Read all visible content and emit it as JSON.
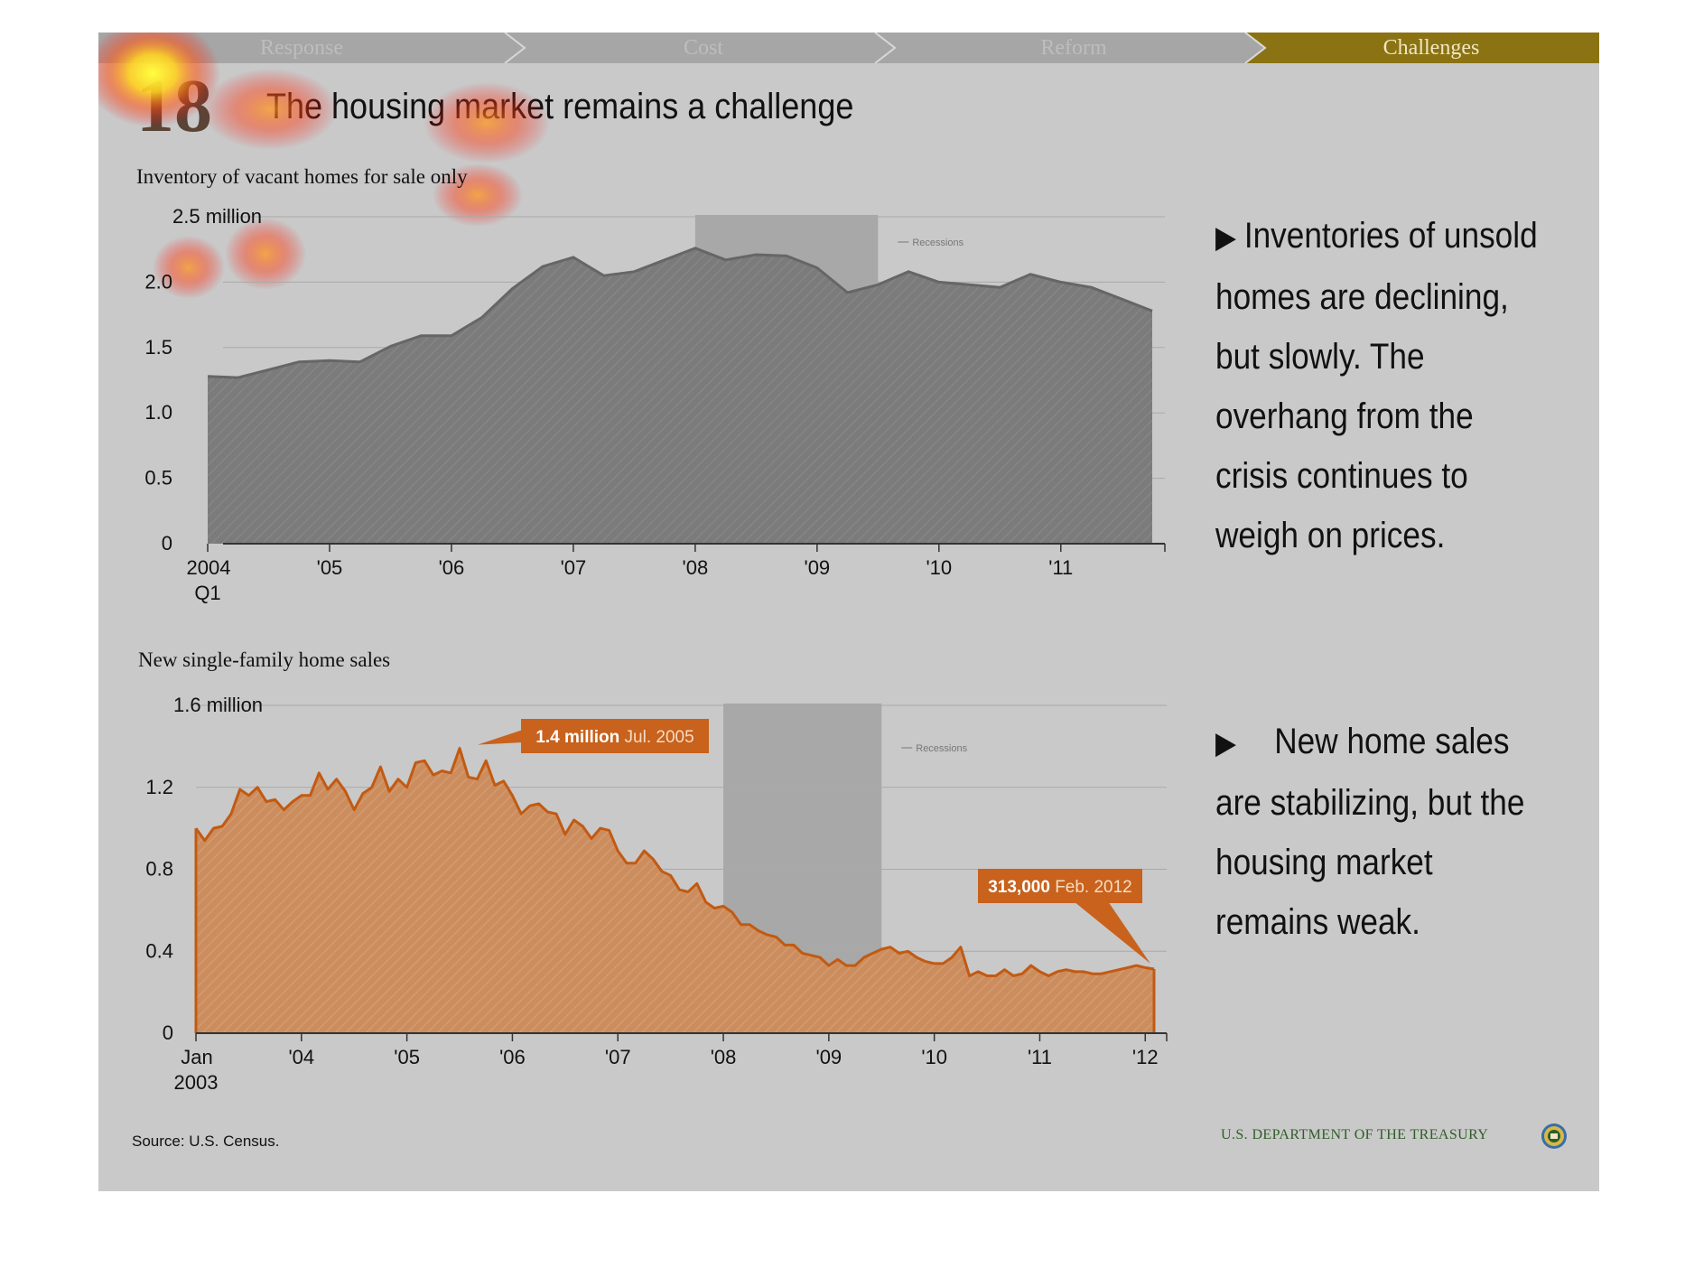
{
  "nav": {
    "tabs": [
      {
        "label": "Response",
        "active": false
      },
      {
        "label": "Cost",
        "active": false
      },
      {
        "label": "Reform",
        "active": false
      },
      {
        "label": "Challenges",
        "active": true
      }
    ],
    "colors": {
      "inactive": "#a6a6a6",
      "active": "#8b7313"
    }
  },
  "slide": {
    "number": "18",
    "title": "The housing market remains a challenge"
  },
  "bullets": [
    {
      "icon": "triangle-right-icon",
      "text": "Inventories of unsold homes are declining, but slowly. The overhang from the crisis continues to weigh on prices."
    },
    {
      "icon": "triangle-right-icon",
      "text": "New home sales are stabilizing, but the housing market remains weak."
    }
  ],
  "footer": {
    "source": "Source: U.S. Census.",
    "org": "U.S. DEPARTMENT OF THE TREASURY"
  },
  "chart_data": [
    {
      "type": "area",
      "title": "Inventory of vacant homes for sale only",
      "ylim": [
        0,
        2.5
      ],
      "y_ticks": [
        0,
        0.5,
        1.0,
        1.5,
        2.0,
        2.5
      ],
      "y_tick_labels": [
        "0",
        "0.5",
        "1.0",
        "1.5",
        "2.0",
        "2.5 million"
      ],
      "x_ticks": [
        "2004 Q1",
        "'05",
        "'06",
        "'07",
        "'08",
        "'09",
        "'10",
        "'11"
      ],
      "x_tick_values": [
        2004.0,
        2005.0,
        2006.0,
        2007.0,
        2008.0,
        2009.0,
        2010.0,
        2011.0
      ],
      "xlim": [
        2004.0,
        2011.75
      ],
      "recession": {
        "label": "Recessions",
        "start": 2008.0,
        "end": 2009.5
      },
      "color": "#7a7a7a",
      "x": [
        2004.0,
        2004.25,
        2004.5,
        2004.75,
        2005.0,
        2005.25,
        2005.5,
        2005.75,
        2006.0,
        2006.25,
        2006.5,
        2006.75,
        2007.0,
        2007.25,
        2007.5,
        2007.75,
        2008.0,
        2008.25,
        2008.5,
        2008.75,
        2009.0,
        2009.25,
        2009.5,
        2009.75,
        2010.0,
        2010.25,
        2010.5,
        2010.75,
        2011.0,
        2011.25,
        2011.5,
        2011.75
      ],
      "values": [
        1.28,
        1.27,
        1.33,
        1.39,
        1.4,
        1.39,
        1.51,
        1.59,
        1.59,
        1.73,
        1.95,
        2.12,
        2.19,
        2.05,
        2.08,
        2.17,
        2.26,
        2.17,
        2.21,
        2.2,
        2.11,
        1.92,
        1.98,
        2.08,
        2.0,
        1.98,
        1.96,
        2.06,
        2.0,
        1.96,
        1.87,
        1.78
      ]
    },
    {
      "type": "area",
      "title": "New single-family home sales",
      "ylim": [
        0,
        1.6
      ],
      "y_ticks": [
        0,
        0.4,
        0.8,
        1.2,
        1.6
      ],
      "y_tick_labels": [
        "0",
        "0.4",
        "0.8",
        "1.2",
        "1.6 million"
      ],
      "x_ticks": [
        "Jan 2003",
        "'04",
        "'05",
        "'06",
        "'07",
        "'08",
        "'09",
        "'10",
        "'11",
        "'12"
      ],
      "x_tick_values": [
        2003.0,
        2004.0,
        2005.0,
        2006.0,
        2007.0,
        2008.0,
        2009.0,
        2010.0,
        2011.0,
        2012.0
      ],
      "xlim": [
        2003.0,
        2012.0833
      ],
      "recession": {
        "label": "Recessions",
        "start": 2008.0,
        "end": 2009.5
      },
      "color": "#c8621c",
      "annotations": [
        {
          "value": "1.4 million",
          "date": "Jul. 2005",
          "x": 2005.5,
          "y": 1.39
        },
        {
          "value": "313,000",
          "date": "Feb. 2012",
          "x": 2012.0833,
          "y": 0.313
        }
      ],
      "x": [
        2003.0,
        2003.0833,
        2003.1667,
        2003.25,
        2003.3333,
        2003.4167,
        2003.5,
        2003.5833,
        2003.6667,
        2003.75,
        2003.8333,
        2003.9167,
        2004.0,
        2004.0833,
        2004.1667,
        2004.25,
        2004.3333,
        2004.4167,
        2004.5,
        2004.5833,
        2004.6667,
        2004.75,
        2004.8333,
        2004.9167,
        2005.0,
        2005.0833,
        2005.1667,
        2005.25,
        2005.3333,
        2005.4167,
        2005.5,
        2005.5833,
        2005.6667,
        2005.75,
        2005.8333,
        2005.9167,
        2006.0,
        2006.0833,
        2006.1667,
        2006.25,
        2006.3333,
        2006.4167,
        2006.5,
        2006.5833,
        2006.6667,
        2006.75,
        2006.8333,
        2006.9167,
        2007.0,
        2007.0833,
        2007.1667,
        2007.25,
        2007.3333,
        2007.4167,
        2007.5,
        2007.5833,
        2007.6667,
        2007.75,
        2007.8333,
        2007.9167,
        2008.0,
        2008.0833,
        2008.1667,
        2008.25,
        2008.3333,
        2008.4167,
        2008.5,
        2008.5833,
        2008.6667,
        2008.75,
        2008.8333,
        2008.9167,
        2009.0,
        2009.0833,
        2009.1667,
        2009.25,
        2009.3333,
        2009.4167,
        2009.5,
        2009.5833,
        2009.6667,
        2009.75,
        2009.8333,
        2009.9167,
        2010.0,
        2010.0833,
        2010.1667,
        2010.25,
        2010.3333,
        2010.4167,
        2010.5,
        2010.5833,
        2010.6667,
        2010.75,
        2010.8333,
        2010.9167,
        2011.0,
        2011.0833,
        2011.1667,
        2011.25,
        2011.3333,
        2011.4167,
        2011.5,
        2011.5833,
        2011.6667,
        2011.75,
        2011.8333,
        2011.9167,
        2012.0,
        2012.0833
      ],
      "values": [
        1.0,
        0.94,
        1.0,
        1.01,
        1.07,
        1.19,
        1.16,
        1.2,
        1.13,
        1.14,
        1.09,
        1.13,
        1.16,
        1.16,
        1.27,
        1.19,
        1.24,
        1.18,
        1.09,
        1.17,
        1.2,
        1.3,
        1.18,
        1.24,
        1.2,
        1.32,
        1.33,
        1.26,
        1.28,
        1.27,
        1.39,
        1.25,
        1.24,
        1.33,
        1.21,
        1.23,
        1.16,
        1.07,
        1.11,
        1.12,
        1.08,
        1.07,
        0.97,
        1.04,
        1.01,
        0.95,
        1.0,
        0.99,
        0.89,
        0.83,
        0.83,
        0.89,
        0.85,
        0.79,
        0.77,
        0.7,
        0.69,
        0.73,
        0.64,
        0.61,
        0.62,
        0.59,
        0.53,
        0.53,
        0.5,
        0.48,
        0.47,
        0.43,
        0.43,
        0.39,
        0.38,
        0.37,
        0.33,
        0.36,
        0.33,
        0.33,
        0.37,
        0.39,
        0.41,
        0.42,
        0.39,
        0.4,
        0.37,
        0.35,
        0.34,
        0.34,
        0.37,
        0.42,
        0.28,
        0.3,
        0.28,
        0.28,
        0.31,
        0.28,
        0.29,
        0.33,
        0.3,
        0.28,
        0.3,
        0.31,
        0.3,
        0.3,
        0.29,
        0.29,
        0.3,
        0.31,
        0.32,
        0.33,
        0.32,
        0.313
      ]
    }
  ]
}
